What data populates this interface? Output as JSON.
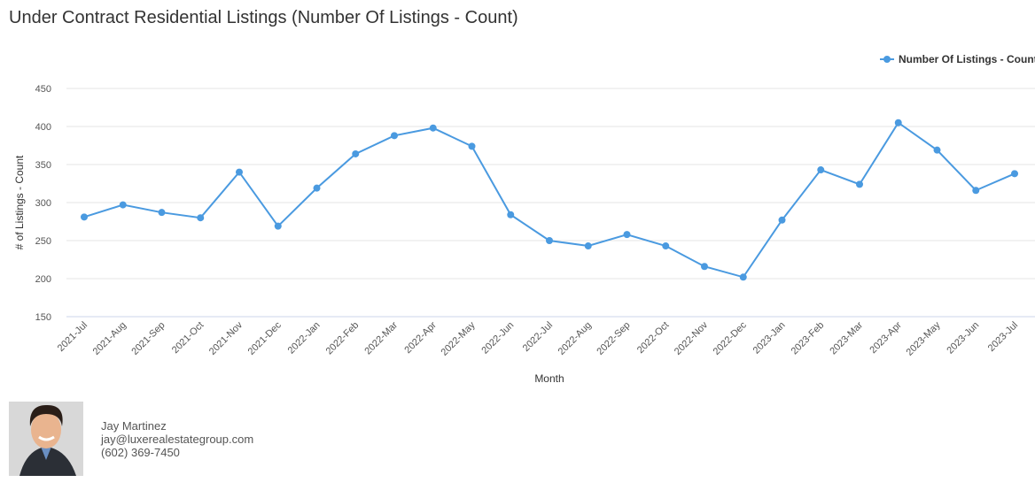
{
  "chart_data": {
    "type": "line",
    "title": "Under Contract Residential Listings (Number Of Listings - Count)",
    "x_label": "Month",
    "y_label": "# of Listings - Count",
    "categories": [
      "2021-Jul",
      "2021-Aug",
      "2021-Sep",
      "2021-Oct",
      "2021-Nov",
      "2021-Dec",
      "2022-Jan",
      "2022-Feb",
      "2022-Mar",
      "2022-Apr",
      "2022-May",
      "2022-Jun",
      "2022-Jul",
      "2022-Aug",
      "2022-Sep",
      "2022-Oct",
      "2022-Nov",
      "2022-Dec",
      "2023-Jan",
      "2023-Feb",
      "2023-Mar",
      "2023-Apr",
      "2023-May",
      "2023-Jun",
      "2023-Jul"
    ],
    "series": [
      {
        "name": "Number Of Listings - Count",
        "color": "#4a9ae0",
        "values": [
          281,
          297,
          287,
          280,
          340,
          269,
          319,
          364,
          388,
          398,
          374,
          284,
          250,
          243,
          258,
          243,
          216,
          202,
          277,
          343,
          324,
          405,
          369,
          316,
          338
        ]
      }
    ],
    "ylim": [
      150,
      450
    ],
    "yticks": [
      150,
      200,
      250,
      300,
      350,
      400,
      450
    ],
    "grid": true,
    "legend": "top-right"
  },
  "contact": {
    "name": "Jay Martinez",
    "email": "jay@luxerealestategroup.com",
    "phone": "(602) 369-7450"
  }
}
